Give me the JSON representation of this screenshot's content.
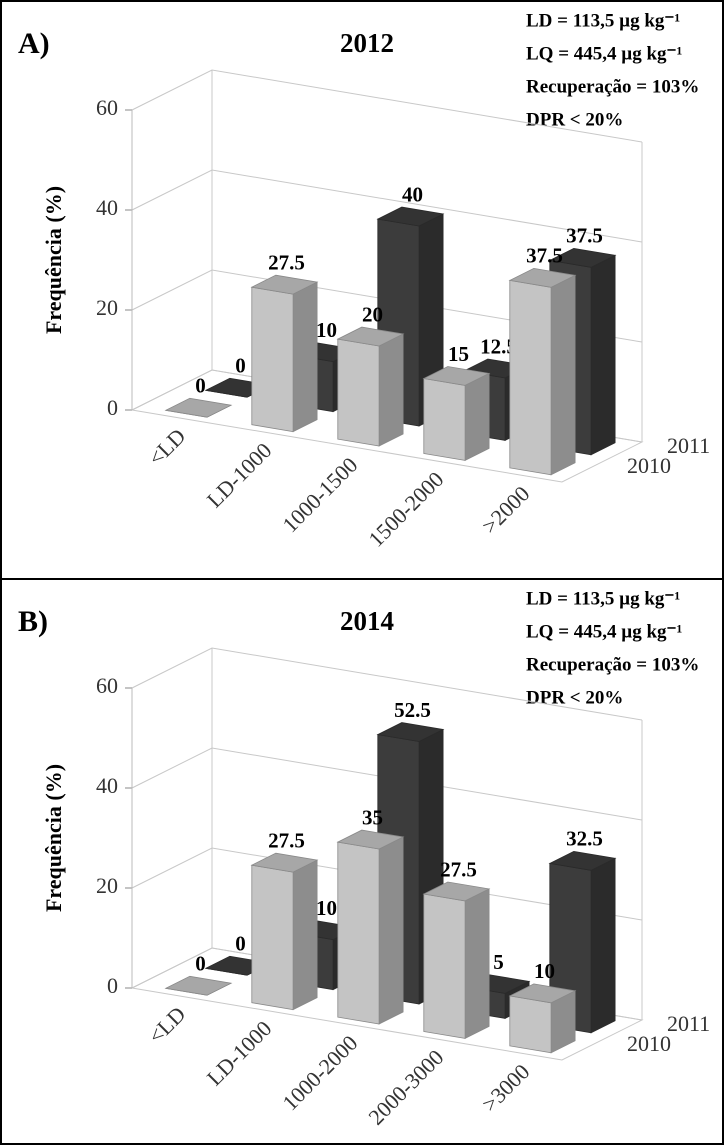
{
  "chart_data": [
    {
      "type": "bar3d",
      "panel_label": "A)",
      "title": "2012",
      "annotations": [
        "LD = 113,5 µg kg⁻¹",
        "LQ = 445,4 µg kg⁻¹",
        "Recuperação = 103%",
        "DPR < 20%"
      ],
      "ylabel": "Frequência (%)",
      "categories": [
        "<LD",
        "LD-1000",
        "1000-1500",
        "1500-2000",
        ">2000"
      ],
      "series": [
        {
          "name": "2010",
          "color": "#c4c4c4",
          "values": [
            0,
            27.5,
            20,
            15,
            37.5
          ]
        },
        {
          "name": "2011",
          "color": "#3c3c3c",
          "values": [
            0,
            10,
            40,
            12.5,
            37.5
          ]
        }
      ],
      "ylim": [
        0,
        60
      ],
      "yticks": [
        0,
        20,
        40,
        60
      ],
      "grid": true
    },
    {
      "type": "bar3d",
      "panel_label": "B)",
      "title": "2014",
      "annotations": [
        "LD = 113,5 µg kg⁻¹",
        "LQ = 445,4 µg kg⁻¹",
        "Recuperação = 103%",
        "DPR < 20%"
      ],
      "ylabel": "Frequência (%)",
      "categories": [
        "<LD",
        "LD-1000",
        "1000-2000",
        "2000-3000",
        ">3000"
      ],
      "series": [
        {
          "name": "2010",
          "color": "#c4c4c4",
          "values": [
            0,
            27.5,
            35,
            27.5,
            10
          ]
        },
        {
          "name": "2011",
          "color": "#3c3c3c",
          "values": [
            0,
            10,
            52.5,
            5,
            32.5
          ]
        }
      ],
      "ylim": [
        0,
        60
      ],
      "yticks": [
        0,
        20,
        40,
        60
      ],
      "grid": true
    }
  ]
}
